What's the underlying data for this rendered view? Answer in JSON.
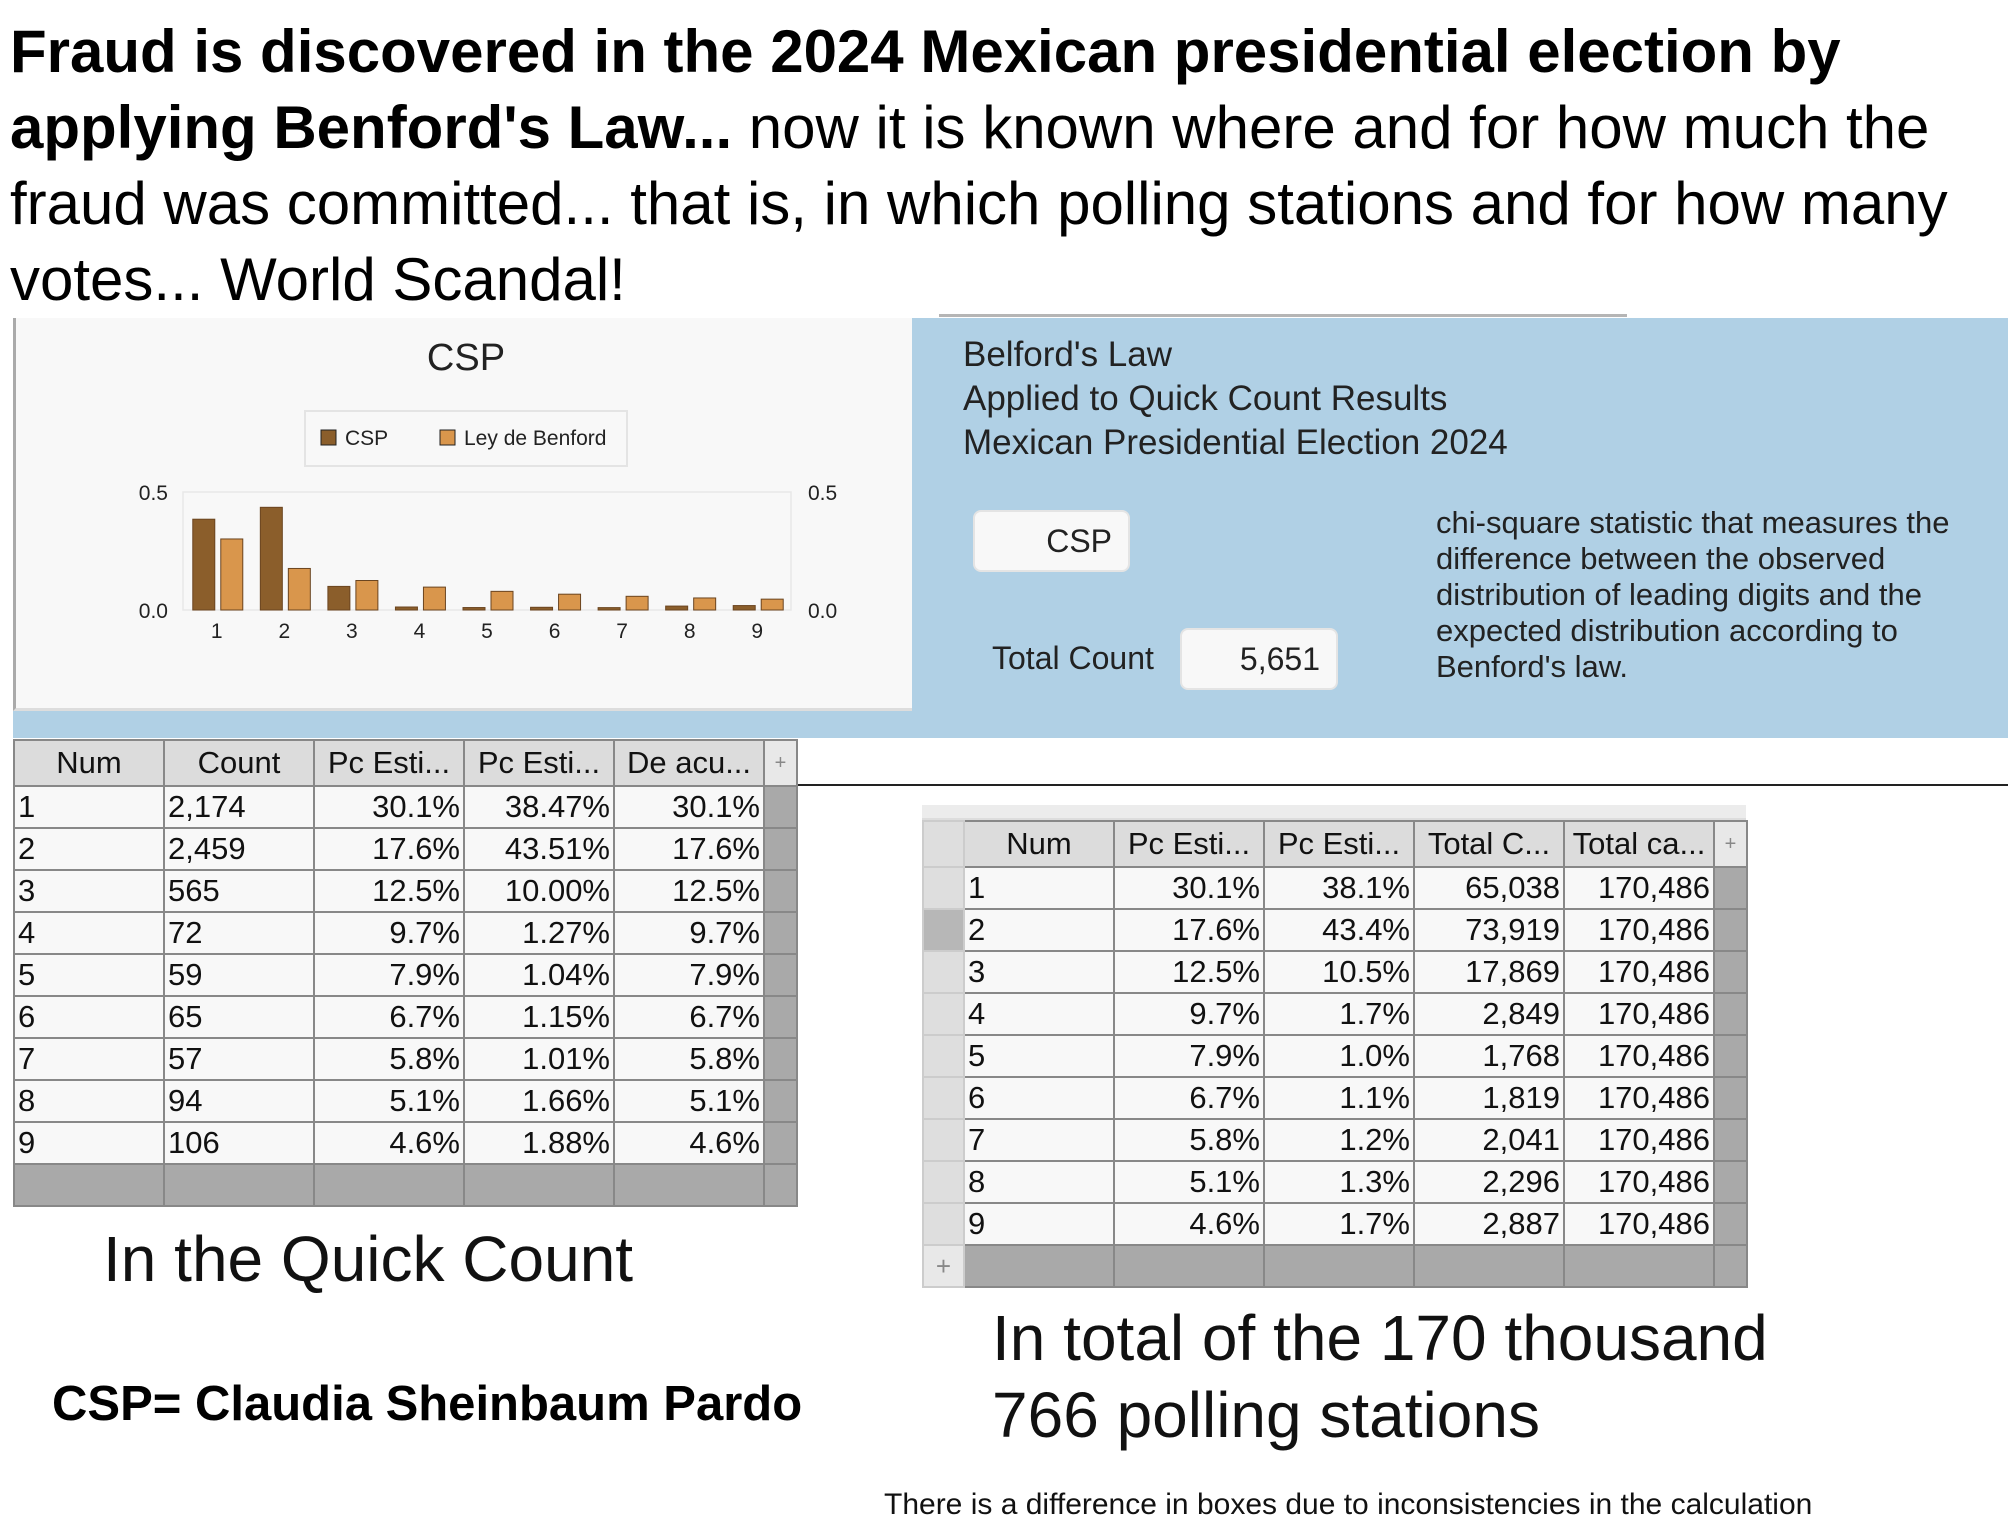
{
  "headline": {
    "bold": "Fraud is discovered in the 2024 Mexican presidential election by applying Benford's Law...",
    "rest": " now it is known where and for how much the fraud was committed... that is, in which polling stations and for how many votes... World Scandal!"
  },
  "chart_data": {
    "type": "bar",
    "title": "CSP",
    "categories": [
      "1",
      "2",
      "3",
      "4",
      "5",
      "6",
      "7",
      "8",
      "9"
    ],
    "series": [
      {
        "name": "CSP",
        "color": "#8b5e2b",
        "values": [
          0.3847,
          0.4351,
          0.1,
          0.0127,
          0.0104,
          0.0115,
          0.0101,
          0.0166,
          0.0188
        ]
      },
      {
        "name": "Ley de Benford",
        "color": "#d9964c",
        "values": [
          0.301,
          0.176,
          0.125,
          0.097,
          0.079,
          0.067,
          0.058,
          0.051,
          0.046
        ]
      }
    ],
    "ylim": [
      0,
      0.5
    ],
    "yticks": [
      "0.0",
      "0.5"
    ],
    "legend": "top-center",
    "xlabel": "",
    "ylabel": ""
  },
  "panel": {
    "title_lines": [
      "Belford's Law",
      "Applied to Quick Count Results",
      "Mexican Presidential Election 2024"
    ],
    "csp_field": "CSP",
    "total_count_label": "Total Count",
    "total_count_value": "5,651",
    "description": "chi-square statistic that measures the difference between the observed distribution of leading digits and the expected distribution according to Benford's law."
  },
  "quick_table": {
    "headers": [
      "Num",
      "Count",
      "Pc Esti...",
      "Pc Esti...",
      "De acu..."
    ],
    "add": "+",
    "rows": [
      [
        "1",
        "2,174",
        "30.1%",
        "38.47%",
        "30.1%"
      ],
      [
        "2",
        "2,459",
        "17.6%",
        "43.51%",
        "17.6%"
      ],
      [
        "3",
        "565",
        "12.5%",
        "10.00%",
        "12.5%"
      ],
      [
        "4",
        "72",
        "9.7%",
        "1.27%",
        "9.7%"
      ],
      [
        "5",
        "59",
        "7.9%",
        "1.04%",
        "7.9%"
      ],
      [
        "6",
        "65",
        "6.7%",
        "1.15%",
        "6.7%"
      ],
      [
        "7",
        "57",
        "5.8%",
        "1.01%",
        "5.8%"
      ],
      [
        "8",
        "94",
        "5.1%",
        "1.66%",
        "5.1%"
      ],
      [
        "9",
        "106",
        "4.6%",
        "1.88%",
        "4.6%"
      ]
    ]
  },
  "total_table": {
    "headers": [
      "Num",
      "Pc Esti...",
      "Pc Esti...",
      "Total C...",
      "Total ca..."
    ],
    "add": "+",
    "add_row": "+",
    "rows": [
      [
        "1",
        "30.1%",
        "38.1%",
        "65,038",
        "170,486"
      ],
      [
        "2",
        "17.6%",
        "43.4%",
        "73,919",
        "170,486"
      ],
      [
        "3",
        "12.5%",
        "10.5%",
        "17,869",
        "170,486"
      ],
      [
        "4",
        "9.7%",
        "1.7%",
        "2,849",
        "170,486"
      ],
      [
        "5",
        "7.9%",
        "1.0%",
        "1,768",
        "170,486"
      ],
      [
        "6",
        "6.7%",
        "1.1%",
        "1,819",
        "170,486"
      ],
      [
        "7",
        "5.8%",
        "1.2%",
        "2,041",
        "170,486"
      ],
      [
        "8",
        "5.1%",
        "1.3%",
        "2,296",
        "170,486"
      ],
      [
        "9",
        "4.6%",
        "1.7%",
        "2,887",
        "170,486"
      ]
    ]
  },
  "captions": {
    "quick": "In the Quick Count",
    "total_line1": "In total of the 170 thousand",
    "total_line2": "766 polling stations",
    "csp_def": "CSP= Claudia Sheinbaum Pardo",
    "note": "There is a difference in boxes due to inconsistencies in the calculation"
  }
}
